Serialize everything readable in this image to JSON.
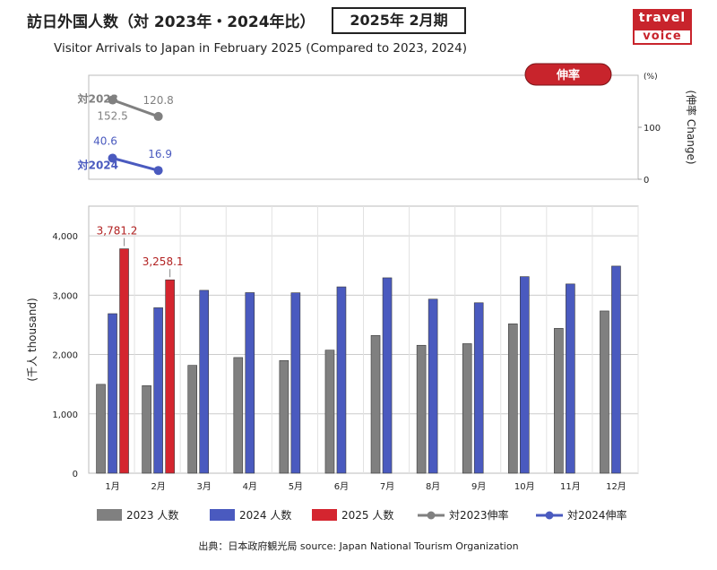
{
  "header": {
    "title": "訪日外国人数（対 2023年・2024年比）",
    "date_box": "2025年 2月期",
    "subtitle": "Visitor Arrivals to Japan in February 2025 (Compared to 2023, 2024)"
  },
  "logo": {
    "top": "travel",
    "bottom": "voice"
  },
  "source": "出典：日本政府観光局  source: Japan National Tourism Organization",
  "chart_data": [
    {
      "type": "line",
      "title": "伸率",
      "ylabel": "(伸率 Change)",
      "yunit": "(%)",
      "yticks": [
        "0",
        "100"
      ],
      "ylim": [
        0,
        200
      ],
      "categories": [
        "1月",
        "2月"
      ],
      "series": [
        {
          "name": "対2023伸率",
          "label": "対2023",
          "values": [
            152.5,
            120.8
          ],
          "color": "#808080"
        },
        {
          "name": "対2024伸率",
          "label": "対2024",
          "values": [
            40.6,
            16.9
          ],
          "color": "#4a5abf"
        }
      ]
    },
    {
      "type": "bar",
      "ylabel": "(千人 thousand)",
      "ylim": [
        0,
        4500
      ],
      "yticks": [
        "0",
        "1,000",
        "2,000",
        "3,000",
        "4,000"
      ],
      "grid": true,
      "categories": [
        "1月",
        "2月",
        "3月",
        "4月",
        "5月",
        "6月",
        "7月",
        "8月",
        "9月",
        "10月",
        "11月",
        "12月"
      ],
      "series": [
        {
          "name": "2023 人数",
          "color": "#808080",
          "values": [
            1497.5,
            1475.5,
            1817.5,
            1949.1,
            1899.2,
            2073.3,
            2320.6,
            2155.5,
            2182.9,
            2516.5,
            2440.6,
            2734.0
          ]
        },
        {
          "name": "2024 人数",
          "color": "#4a5abf",
          "values": [
            2688.1,
            2788.0,
            3081.6,
            3042.9,
            3040.0,
            3140.0,
            3292.6,
            2933.0,
            2872.2,
            3312.2,
            3188.6,
            3489.8
          ]
        },
        {
          "name": "2025 人数",
          "color": "#d4252f",
          "values": [
            3781.2,
            3258.1,
            null,
            null,
            null,
            null,
            null,
            null,
            null,
            null,
            null,
            null
          ],
          "data_labels": [
            "3,781.2",
            "3,258.1"
          ]
        }
      ],
      "legend": {
        "position": "bottom",
        "items": [
          {
            "label": "2023 人数",
            "kind": "box",
            "color": "#808080"
          },
          {
            "label": "2024 人数",
            "kind": "box",
            "color": "#4a5abf"
          },
          {
            "label": "2025 人数",
            "kind": "box",
            "color": "#d4252f"
          },
          {
            "label": "対2023伸率",
            "kind": "line",
            "color": "#808080"
          },
          {
            "label": "対2024伸率",
            "kind": "line",
            "color": "#4a5abf"
          }
        ]
      }
    }
  ]
}
